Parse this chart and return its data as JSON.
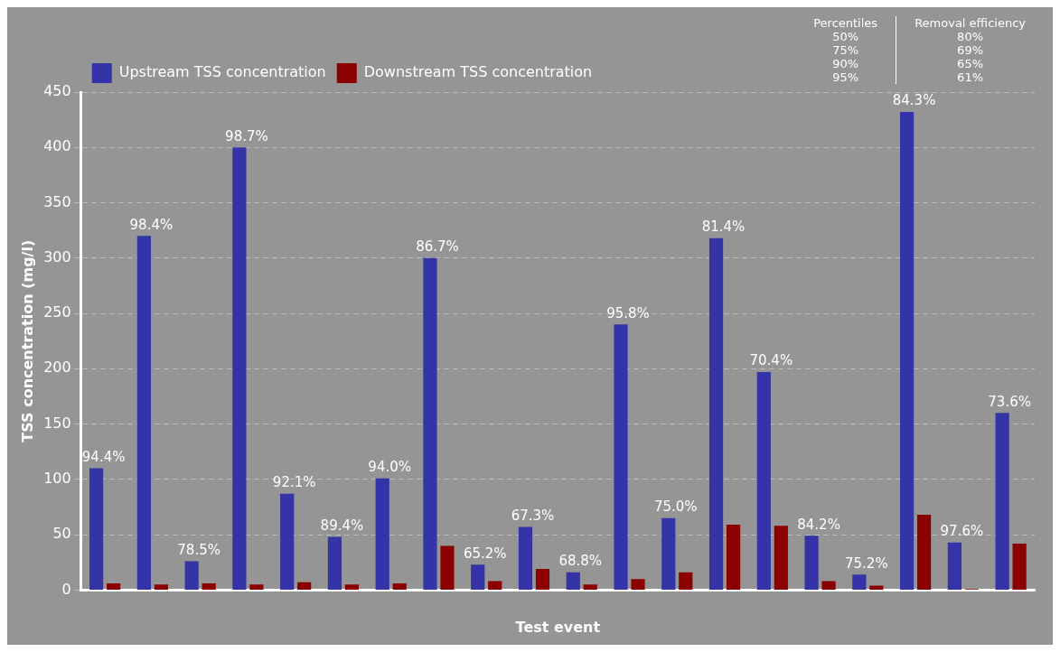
{
  "chart_data": {
    "type": "bar",
    "xlabel": "Test event",
    "ylabel": "TSS concentration (mg/l)",
    "categories": [
      null,
      null,
      null,
      null,
      null,
      null,
      null,
      null,
      null,
      null,
      null,
      null,
      null,
      null,
      null,
      null,
      null,
      null,
      null,
      null
    ],
    "series": [
      {
        "name": "Upstream TSS concentration",
        "color": "#3434a8",
        "values": [
          110,
          320,
          26,
          400,
          87,
          48,
          101,
          300,
          23,
          57,
          16,
          240,
          65,
          318,
          197,
          49,
          14,
          432,
          43,
          160
        ]
      },
      {
        "name": "Downstream TSS concentration",
        "color": "#8b0000",
        "values": [
          6,
          5,
          6,
          5,
          7,
          5,
          6,
          40,
          8,
          19,
          5,
          10,
          16,
          59,
          58,
          8,
          4,
          68,
          1,
          42
        ]
      }
    ],
    "ylim": [
      0,
      450
    ],
    "yticks": [
      0,
      50,
      100,
      150,
      200,
      250,
      300,
      350,
      400,
      450
    ],
    "grid": "y",
    "legend": "top left",
    "annotations": [
      "Percentiles",
      "Removal efficiency",
      "50%",
      "80%",
      "75%",
      "69%",
      "90%",
      "65%",
      "95%",
      "61%",
      {
        "text": "94.4%",
        "y": 110
      },
      {
        "text": "98.4%",
        "y": 320
      },
      {
        "text": "78.5%",
        "y": 26
      },
      {
        "text": "98.7%",
        "y": 400
      },
      {
        "text": "92.1%",
        "y": 87
      },
      {
        "text": "89.4%",
        "y": 48
      },
      {
        "text": "94.0%",
        "y": 101
      },
      {
        "text": "86.7%",
        "y": 300
      },
      {
        "text": "65.2%",
        "y": 23
      },
      {
        "text": "67.3%",
        "y": 57
      },
      {
        "text": "68.8%",
        "y": 16
      },
      {
        "text": "95.8%",
        "y": 240
      },
      {
        "text": "75.0%",
        "y": 65
      },
      {
        "text": "81.4%",
        "y": 318
      },
      {
        "text": "70.4%",
        "y": 197
      },
      {
        "text": "84.2%",
        "y": 49
      },
      {
        "text": "75.2%",
        "y": 14
      },
      {
        "text": "84.3%",
        "y": 432
      },
      {
        "text": "97.6%",
        "y": 43
      },
      {
        "text": "73.6%",
        "y": 160
      }
    ]
  }
}
